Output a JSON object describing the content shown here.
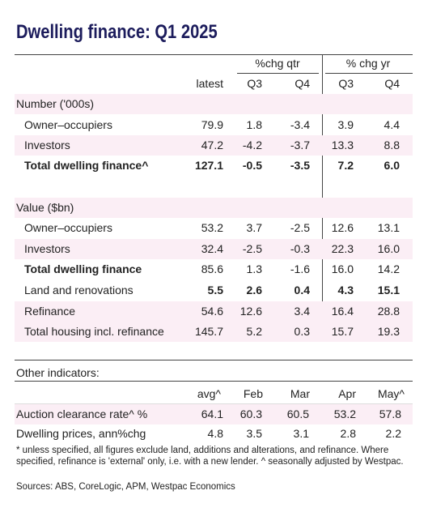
{
  "title": "Dwelling finance: Q1 2025",
  "table": {
    "group_headers": [
      "%chg qtr",
      "% chg yr"
    ],
    "columns": [
      "latest",
      "Q3",
      "Q4",
      "Q3",
      "Q4"
    ],
    "sections": [
      {
        "heading": "Number ('000s)",
        "rows": [
          {
            "label": "Owner–occupiers",
            "cells": [
              "79.9",
              "1.8",
              "-3.4",
              "3.9",
              "4.4"
            ]
          },
          {
            "label": "Investors",
            "cells": [
              "47.2",
              "-4.2",
              "-3.7",
              "13.3",
              "8.8"
            ]
          },
          {
            "label": "Total dwelling finance^",
            "cells": [
              "127.1",
              "-0.5",
              "-3.5",
              "7.2",
              "6.0"
            ]
          }
        ]
      },
      {
        "heading": "Value ($bn)",
        "rows": [
          {
            "label": "Owner–occupiers",
            "cells": [
              "53.2",
              "3.7",
              "-2.5",
              "12.6",
              "13.1"
            ]
          },
          {
            "label": "Investors",
            "cells": [
              "32.4",
              "-2.5",
              "-0.3",
              "22.3",
              "16.0"
            ]
          },
          {
            "label": "Total dwelling finance",
            "cells": [
              "85.6",
              "1.3",
              "-1.6",
              "16.0",
              "14.2"
            ]
          },
          {
            "label": "Land and renovations",
            "cells": [
              "5.5",
              "2.6",
              "0.4",
              "4.3",
              "15.1"
            ]
          },
          {
            "label": "Refinance",
            "cells": [
              "54.6",
              "12.6",
              "3.4",
              "16.4",
              "28.8"
            ]
          },
          {
            "label": "Total housing incl. refinance",
            "cells": [
              "145.7",
              "5.2",
              "0.3",
              "15.7",
              "19.3"
            ]
          }
        ]
      }
    ]
  },
  "other_indicators": {
    "heading": "Other indicators:",
    "columns": [
      "avg^",
      "Feb",
      "Mar",
      "Apr",
      "May^"
    ],
    "rows": [
      {
        "label": "Auction clearance rate^ %",
        "cells": [
          "64.1",
          "60.3",
          "60.5",
          "53.2",
          "57.8"
        ]
      },
      {
        "label": "Dwelling prices, ann%chg",
        "cells": [
          "4.8",
          "3.5",
          "3.1",
          "2.8",
          "2.2"
        ]
      }
    ]
  },
  "footnote": "* unless specified, all figures exclude land, additions and alterations, and refinance. Where specified, refinance is 'external' only, i.e. with a new lender. ^ seasonally adjusted by Westpac.",
  "sources": "Sources: ABS, CoreLogic, APM, Westpac Economics"
}
